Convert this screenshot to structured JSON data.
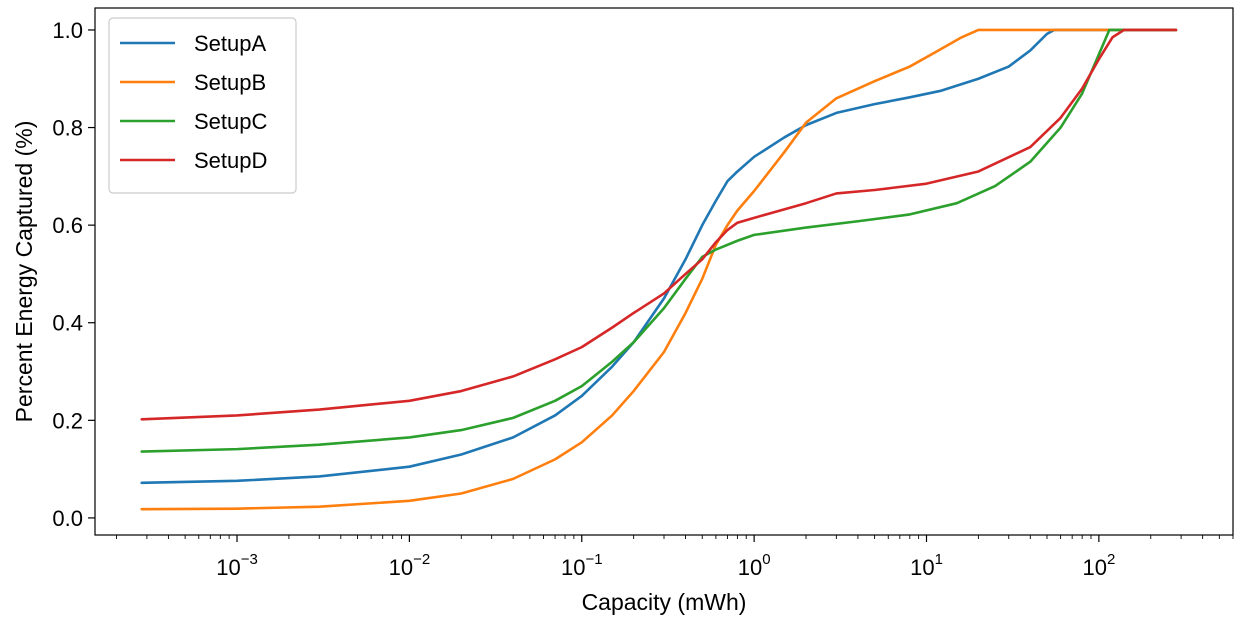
{
  "chart_data": {
    "type": "line",
    "title": "",
    "xlabel": "Capacity (mWh)",
    "ylabel": "Percent Energy Captured (%)",
    "xscale": "log",
    "xlim": [
      0.00015,
      600
    ],
    "ylim": [
      -0.035,
      1.045
    ],
    "x_major_ticks": [
      {
        "value": 0.001,
        "label": "10",
        "exponent": "−3"
      },
      {
        "value": 0.01,
        "label": "10",
        "exponent": "−2"
      },
      {
        "value": 0.1,
        "label": "10",
        "exponent": "−1"
      },
      {
        "value": 1,
        "label": "10",
        "exponent": "0"
      },
      {
        "value": 10,
        "label": "10",
        "exponent": "1"
      },
      {
        "value": 100,
        "label": "10",
        "exponent": "2"
      }
    ],
    "y_ticks": [
      {
        "value": 0.0,
        "label": "0.0"
      },
      {
        "value": 0.2,
        "label": "0.2"
      },
      {
        "value": 0.4,
        "label": "0.4"
      },
      {
        "value": 0.6,
        "label": "0.6"
      },
      {
        "value": 0.8,
        "label": "0.8"
      },
      {
        "value": 1.0,
        "label": "1.0"
      }
    ],
    "grid": false,
    "legend_position": "top-left",
    "series": [
      {
        "name": "SetupA",
        "color": "#1f77b4",
        "points": [
          [
            0.00028,
            0.072
          ],
          [
            0.001,
            0.076
          ],
          [
            0.003,
            0.085
          ],
          [
            0.01,
            0.105
          ],
          [
            0.02,
            0.13
          ],
          [
            0.04,
            0.165
          ],
          [
            0.07,
            0.21
          ],
          [
            0.1,
            0.25
          ],
          [
            0.15,
            0.31
          ],
          [
            0.2,
            0.36
          ],
          [
            0.3,
            0.45
          ],
          [
            0.4,
            0.53
          ],
          [
            0.5,
            0.6
          ],
          [
            0.6,
            0.65
          ],
          [
            0.7,
            0.69
          ],
          [
            0.8,
            0.71
          ],
          [
            1.0,
            0.74
          ],
          [
            1.5,
            0.78
          ],
          [
            2.0,
            0.805
          ],
          [
            3.0,
            0.83
          ],
          [
            5.0,
            0.848
          ],
          [
            8.0,
            0.862
          ],
          [
            12.0,
            0.875
          ],
          [
            20.0,
            0.9
          ],
          [
            30.0,
            0.925
          ],
          [
            40.0,
            0.958
          ],
          [
            50.0,
            0.992
          ],
          [
            55.0,
            1.0
          ],
          [
            280.0,
            1.0
          ]
        ]
      },
      {
        "name": "SetupB",
        "color": "#ff7f0e",
        "points": [
          [
            0.00028,
            0.018
          ],
          [
            0.001,
            0.019
          ],
          [
            0.003,
            0.023
          ],
          [
            0.01,
            0.035
          ],
          [
            0.02,
            0.05
          ],
          [
            0.04,
            0.08
          ],
          [
            0.07,
            0.12
          ],
          [
            0.1,
            0.155
          ],
          [
            0.15,
            0.21
          ],
          [
            0.2,
            0.26
          ],
          [
            0.3,
            0.34
          ],
          [
            0.4,
            0.42
          ],
          [
            0.5,
            0.49
          ],
          [
            0.6,
            0.56
          ],
          [
            0.7,
            0.6
          ],
          [
            0.8,
            0.63
          ],
          [
            1.0,
            0.67
          ],
          [
            1.5,
            0.75
          ],
          [
            2.0,
            0.81
          ],
          [
            3.0,
            0.86
          ],
          [
            5.0,
            0.895
          ],
          [
            8.0,
            0.925
          ],
          [
            12.0,
            0.96
          ],
          [
            16.0,
            0.985
          ],
          [
            20.0,
            1.0
          ],
          [
            280.0,
            1.0
          ]
        ]
      },
      {
        "name": "SetupC",
        "color": "#2ca02c",
        "points": [
          [
            0.00028,
            0.136
          ],
          [
            0.001,
            0.141
          ],
          [
            0.003,
            0.15
          ],
          [
            0.01,
            0.165
          ],
          [
            0.02,
            0.18
          ],
          [
            0.04,
            0.205
          ],
          [
            0.07,
            0.24
          ],
          [
            0.1,
            0.27
          ],
          [
            0.15,
            0.32
          ],
          [
            0.2,
            0.36
          ],
          [
            0.3,
            0.43
          ],
          [
            0.4,
            0.49
          ],
          [
            0.5,
            0.535
          ],
          [
            0.6,
            0.55
          ],
          [
            0.8,
            0.568
          ],
          [
            1.0,
            0.58
          ],
          [
            2.0,
            0.595
          ],
          [
            4.0,
            0.608
          ],
          [
            8.0,
            0.622
          ],
          [
            15.0,
            0.645
          ],
          [
            25.0,
            0.68
          ],
          [
            40.0,
            0.73
          ],
          [
            60.0,
            0.8
          ],
          [
            80.0,
            0.87
          ],
          [
            100.0,
            0.95
          ],
          [
            115.0,
            1.0
          ],
          [
            280.0,
            1.0
          ]
        ]
      },
      {
        "name": "SetupD",
        "color": "#d62728",
        "points": [
          [
            0.00028,
            0.202
          ],
          [
            0.001,
            0.21
          ],
          [
            0.003,
            0.222
          ],
          [
            0.01,
            0.24
          ],
          [
            0.02,
            0.26
          ],
          [
            0.04,
            0.29
          ],
          [
            0.07,
            0.325
          ],
          [
            0.1,
            0.35
          ],
          [
            0.15,
            0.39
          ],
          [
            0.2,
            0.42
          ],
          [
            0.3,
            0.46
          ],
          [
            0.4,
            0.5
          ],
          [
            0.5,
            0.53
          ],
          [
            0.6,
            0.565
          ],
          [
            0.7,
            0.59
          ],
          [
            0.8,
            0.605
          ],
          [
            1.0,
            0.615
          ],
          [
            2.0,
            0.645
          ],
          [
            3.0,
            0.665
          ],
          [
            5.0,
            0.672
          ],
          [
            10.0,
            0.685
          ],
          [
            20.0,
            0.71
          ],
          [
            40.0,
            0.76
          ],
          [
            60.0,
            0.82
          ],
          [
            80.0,
            0.88
          ],
          [
            100.0,
            0.94
          ],
          [
            120.0,
            0.985
          ],
          [
            140.0,
            1.0
          ],
          [
            280.0,
            1.0
          ]
        ]
      }
    ]
  }
}
